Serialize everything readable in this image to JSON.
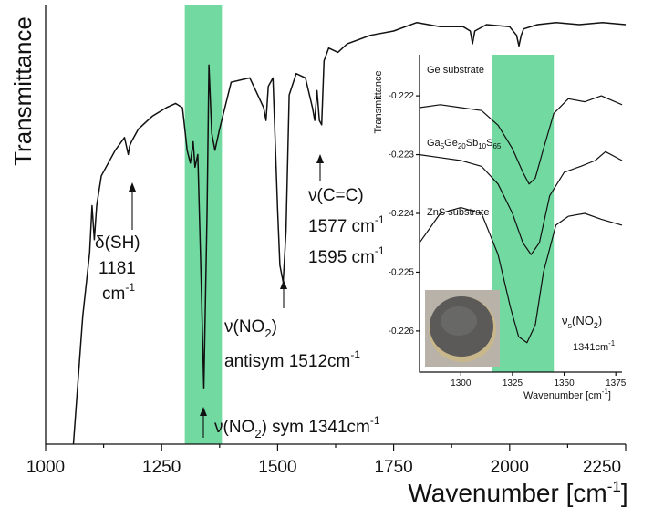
{
  "chart_data": [
    {
      "type": "line",
      "xlabel_main": "Wavenumber [cm",
      "xlabel_sup": "-1",
      "xlabel_end": "]",
      "ylabel": "Transmittance",
      "xlim": [
        1000,
        2250
      ],
      "xticks": [
        1000,
        1250,
        1500,
        1750,
        2000,
        2250
      ],
      "highlight_band": [
        1300,
        1380
      ],
      "series": [
        {
          "x": [
            1060,
            1080,
            1095,
            1100,
            1105,
            1110,
            1120,
            1150,
            1170,
            1178,
            1181,
            1185,
            1200,
            1230,
            1260,
            1280,
            1295,
            1305,
            1312,
            1318,
            1322,
            1328,
            1335,
            1341,
            1348,
            1352,
            1358,
            1365,
            1375,
            1400,
            1440,
            1470,
            1475,
            1480,
            1490,
            1500,
            1505,
            1512,
            1518,
            1525,
            1540,
            1560,
            1575,
            1580,
            1585,
            1590,
            1595,
            1600,
            1610,
            1630,
            1650,
            1700,
            1750,
            1800,
            1850,
            1900,
            1915,
            1920,
            1925,
            1950,
            2000,
            2015,
            2020,
            2025,
            2030,
            2060,
            2100,
            2150,
            2200,
            2250
          ],
          "y": [
            0.0,
            0.3,
            0.45,
            0.56,
            0.48,
            0.56,
            0.63,
            0.69,
            0.72,
            0.68,
            0.7,
            0.71,
            0.74,
            0.77,
            0.79,
            0.8,
            0.79,
            0.69,
            0.66,
            0.71,
            0.65,
            0.68,
            0.4,
            0.13,
            0.55,
            0.89,
            0.73,
            0.69,
            0.74,
            0.85,
            0.86,
            0.79,
            0.76,
            0.84,
            0.86,
            0.55,
            0.42,
            0.38,
            0.5,
            0.82,
            0.87,
            0.86,
            0.79,
            0.76,
            0.83,
            0.76,
            0.75,
            0.9,
            0.93,
            0.92,
            0.94,
            0.96,
            0.97,
            0.99,
            0.98,
            0.98,
            0.97,
            0.94,
            0.97,
            0.985,
            0.98,
            0.96,
            0.935,
            0.96,
            0.975,
            0.985,
            0.99,
            0.985,
            0.99,
            0.985
          ]
        }
      ],
      "annotations": [
        {
          "id": "sh",
          "lines": [
            "δ(SH)",
            "1181",
            "cm"
          ],
          "sup": "-1",
          "x": 1181
        },
        {
          "id": "no2-anti",
          "line1": "ν(NO",
          "sub": "2",
          "line1_end": ")",
          "line2": "antisym 1512cm",
          "sup": "-1",
          "x": 1512
        },
        {
          "id": "cc",
          "line1": "ν(C=C)",
          "line2": "1577 cm",
          "line3": "1595 cm",
          "sup": "-1",
          "x": 1590
        },
        {
          "id": "no2-sym",
          "text_a": "ν(NO",
          "sub": "2",
          "text_b": ") sym 1341cm",
          "sup": "-1",
          "x": 1341
        }
      ]
    },
    {
      "type": "line",
      "inset": true,
      "ylabel": "Transmittance",
      "xlabel_main": "Wavenumber [cm",
      "xlabel_sup": "-1",
      "xlabel_end": "]",
      "xlim": [
        1280,
        1378
      ],
      "xticks": [
        1300,
        1325,
        1350,
        1375
      ],
      "ylim": [
        -0.2267,
        -0.2213
      ],
      "yticks": [
        -0.222,
        -0.223,
        -0.224,
        -0.225,
        -0.226
      ],
      "highlight_band": [
        1315,
        1345
      ],
      "series_labels": {
        "ge": "Ge substrate",
        "gasb_a": "Ga",
        "gasb_s1": "5",
        "gasb_b": "Ge",
        "gasb_s2": "20",
        "gasb_c": "Sb",
        "gasb_s3": "10",
        "gasb_d": "S",
        "gasb_s4": "65",
        "zns": "ZnS substrate"
      },
      "series": [
        {
          "name": "Ge substrate",
          "x": [
            1280,
            1290,
            1300,
            1310,
            1318,
            1325,
            1330,
            1333,
            1336,
            1340,
            1345,
            1352,
            1360,
            1368,
            1378
          ],
          "y": [
            -0.2222,
            -0.22215,
            -0.2222,
            -0.22225,
            -0.2225,
            -0.2229,
            -0.2233,
            -0.2235,
            -0.2234,
            -0.2229,
            -0.2223,
            -0.22205,
            -0.2221,
            -0.222,
            -0.22215
          ]
        },
        {
          "name": "Ga5Ge20Sb10S65",
          "x": [
            1280,
            1290,
            1300,
            1310,
            1318,
            1325,
            1330,
            1334,
            1338,
            1343,
            1350,
            1358,
            1365,
            1370,
            1378
          ],
          "y": [
            -0.223,
            -0.22305,
            -0.2231,
            -0.2232,
            -0.2235,
            -0.224,
            -0.2245,
            -0.2247,
            -0.2245,
            -0.2237,
            -0.2233,
            -0.2232,
            -0.2231,
            -0.22295,
            -0.2231
          ]
        },
        {
          "name": "ZnS substrate",
          "x": [
            1280,
            1290,
            1300,
            1310,
            1318,
            1324,
            1328,
            1332,
            1336,
            1340,
            1346,
            1352,
            1360,
            1368,
            1378
          ],
          "y": [
            -0.2245,
            -0.224,
            -0.2239,
            -0.224,
            -0.2247,
            -0.2256,
            -0.2261,
            -0.2262,
            -0.2259,
            -0.225,
            -0.2242,
            -0.22405,
            -0.224,
            -0.2241,
            -0.2242
          ]
        }
      ],
      "annotation": {
        "text_a": "ν",
        "sub_a": "s",
        "text_b": "(NO",
        "sub_b": "2",
        "text_c": ")",
        "line2": "1341cm",
        "sup": "-1"
      },
      "photo": "circular-sample-disc"
    }
  ]
}
